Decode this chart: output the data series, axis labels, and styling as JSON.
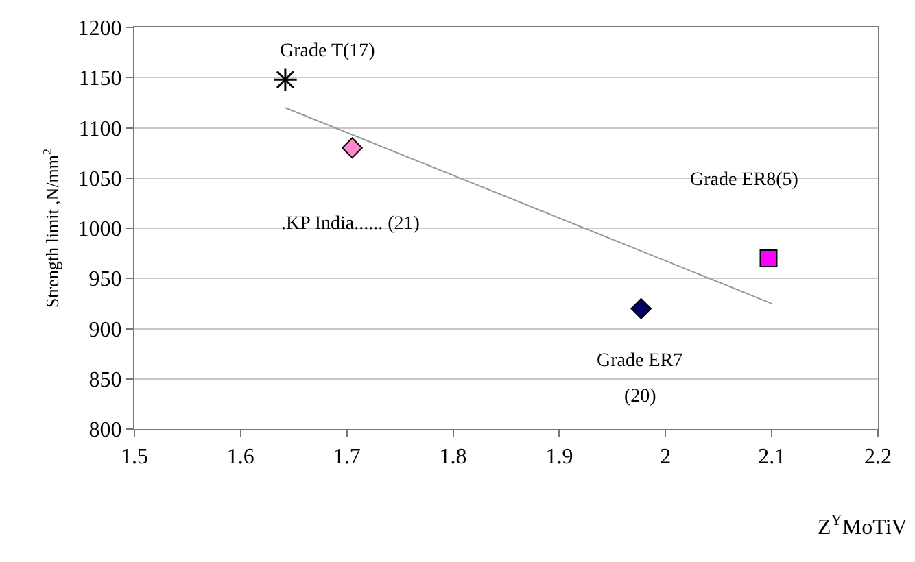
{
  "chart_data": {
    "type": "scatter",
    "xlabel": "Z$^{Y}$MoTiV",
    "ylabel": "Strength limit ,N/mm$^{2}$",
    "series": [
      {
        "color": "#000000",
        "marker": "cross",
        "x": [
          1.642
        ],
        "values": [
          1148
        ]
      },
      {
        "color": "#ff88cc",
        "marker": "diamond",
        "x": [
          1.705
        ],
        "values": [
          1080
        ]
      },
      {
        "color": "#000066",
        "marker": "diamond",
        "x": [
          1.977
        ],
        "values": [
          920
        ]
      },
      {
        "color": "#ff00ff",
        "marker": "square",
        "x": [
          2.097
        ],
        "values": [
          970
        ]
      },
      {
        "type": "line",
        "color": "#999999",
        "marker": "none",
        "x": [
          1.642,
          2.1
        ],
        "values": [
          1120,
          925
        ]
      }
    ],
    "annotations": [
      "Grade T(17)",
      ".KP India...... (21)",
      "Grade ER8(5)",
      "Grade ER7",
      "(20)"
    ],
    "xlim": [
      1.5,
      2.2
    ],
    "xticks": [
      1.5,
      1.6,
      1.7,
      1.8,
      1.9,
      2,
      2.1,
      2.2
    ],
    "ylim": [
      800,
      1200
    ],
    "yticks": [
      800,
      850,
      900,
      950,
      1000,
      1050,
      1100,
      1150,
      1200
    ],
    "grid": "y"
  }
}
